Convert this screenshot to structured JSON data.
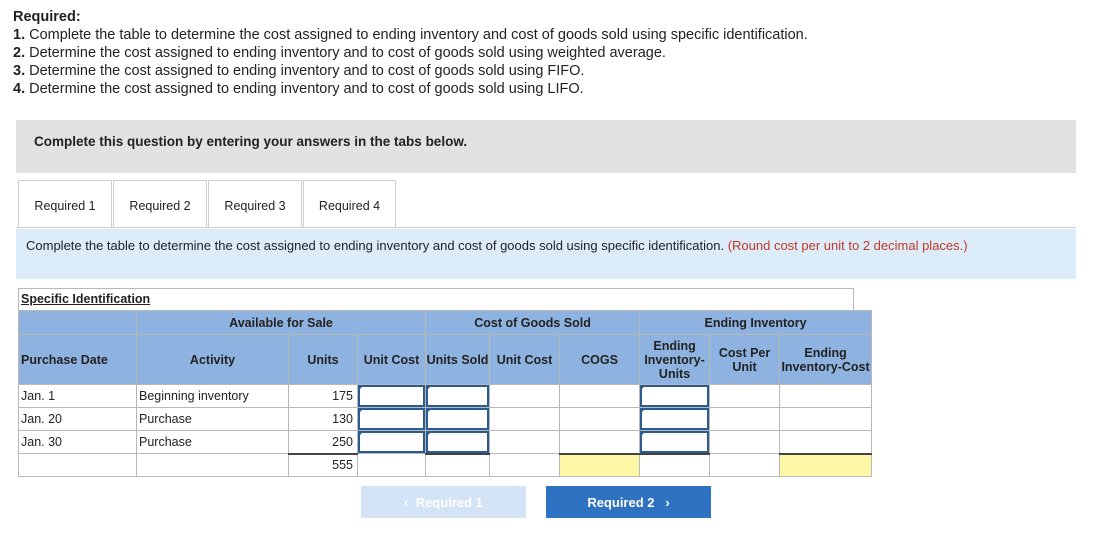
{
  "required": {
    "heading": "Required:",
    "items": [
      {
        "num": "1.",
        "text": " Complete the table to determine the cost assigned to ending inventory and cost of goods sold using specific identification."
      },
      {
        "num": "2.",
        "text": " Determine the cost assigned to ending inventory and to cost of goods sold using weighted average."
      },
      {
        "num": "3.",
        "text": " Determine the cost assigned to ending inventory and to cost of goods sold using FIFO."
      },
      {
        "num": "4.",
        "text": " Determine the cost assigned to ending inventory and to cost of goods sold using LIFO."
      }
    ]
  },
  "banner": "Complete this question by entering your answers in the tabs below.",
  "tabs": [
    {
      "label": "Required 1",
      "active": true
    },
    {
      "label": "Required 2",
      "active": false
    },
    {
      "label": "Required 3",
      "active": false
    },
    {
      "label": "Required 4",
      "active": false
    }
  ],
  "instruction": {
    "text": "Complete the table to determine the cost assigned to ending inventory and cost of goods sold using specific identification. ",
    "note": "(Round cost per unit to 2 decimal places.)"
  },
  "table": {
    "title": "Specific Identification",
    "group_headers": {
      "available": "Available for Sale",
      "cogs": "Cost of Goods Sold",
      "ending": "Ending Inventory"
    },
    "columns": {
      "purchase_date": "Purchase Date",
      "activity": "Activity",
      "units": "Units",
      "unit_cost": "Unit Cost",
      "units_sold": "Units Sold",
      "cogs_unit_cost": "Unit Cost",
      "cogs": "COGS",
      "ending_units": "Ending Inventory-Units",
      "cost_per_unit": "Cost Per Unit",
      "ending_cost": "Ending Inventory-Cost"
    },
    "rows": [
      {
        "date": "Jan. 1",
        "activity": "Beginning inventory",
        "units": "175"
      },
      {
        "date": "Jan. 20",
        "activity": "Purchase",
        "units": "130"
      },
      {
        "date": "Jan. 30",
        "activity": "Purchase",
        "units": "250"
      }
    ],
    "total_units": "555"
  },
  "buttons": {
    "prev": "Required 1",
    "next": "Required 2"
  },
  "colors": {
    "header_blue": "#8fb3e0",
    "banner_gray": "#e2e2e2",
    "instruction_blue": "#dcecf9",
    "input_border": "#2b5c91",
    "total_yellow": "#fdf7a6",
    "next_button": "#2f72c2",
    "prev_button": "#d4e3f5"
  }
}
